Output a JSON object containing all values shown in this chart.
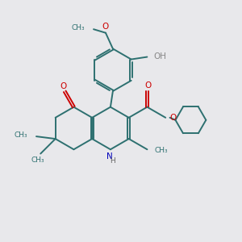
{
  "bg_color": "#e8e8eb",
  "bond_color": "#2d7070",
  "bond_width": 1.4,
  "o_color": "#cc0000",
  "n_color": "#0000bb",
  "fig_size": [
    3.0,
    3.0
  ],
  "dpi": 100,
  "xlim": [
    0,
    10
  ],
  "ylim": [
    0,
    10
  ]
}
